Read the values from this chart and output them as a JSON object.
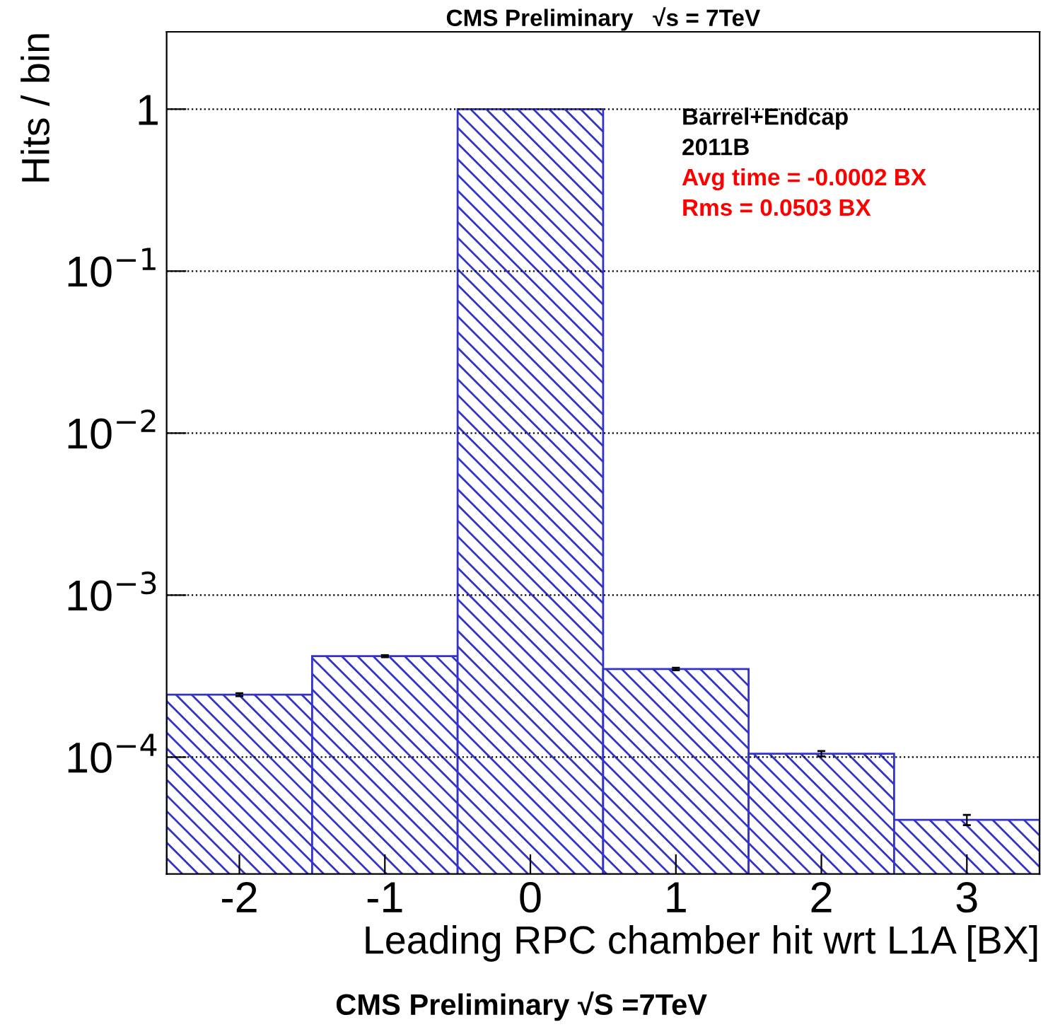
{
  "chart_data": {
    "type": "histogram",
    "title": "CMS Preliminary   √s = 7TeV",
    "xlabel": "Leading RPC chamber hit wrt L1A [BX]",
    "ylabel": "Hits / bin",
    "bins": [
      -2.5,
      -1.5,
      -0.5,
      0.5,
      1.5,
      2.5,
      3.5
    ],
    "values": [
      0.000243,
      0.00042,
      1.0,
      0.00035,
      0.000105,
      4.1e-05
    ],
    "errors": [
      5e-06,
      6e-06,
      null,
      6e-06,
      4e-06,
      3e-06
    ],
    "color": "#3333cc",
    "log": true,
    "xlim": [
      -2.5,
      3.5
    ],
    "xticks": [
      -2,
      -1,
      0,
      1,
      2,
      3
    ],
    "ylim": [
      1.9e-05,
      3.0
    ],
    "yticks": [
      {
        "value": 0.0001,
        "label": "10$^{−4}$"
      },
      {
        "value": 0.001,
        "label": "10$^{−3}$"
      },
      {
        "value": 0.01,
        "label": "10$^{−2}$"
      },
      {
        "value": 0.1,
        "label": "10$^{−1}$"
      },
      {
        "value": 1,
        "label": "1"
      }
    ],
    "grid": "y",
    "annotations": [
      "Barrel+Endcap",
      "2011B",
      "Avg time = -0.0002 BX",
      "Rms = 0.0503 BX",
      "CMS Preliminary √S =7TeV"
    ]
  }
}
